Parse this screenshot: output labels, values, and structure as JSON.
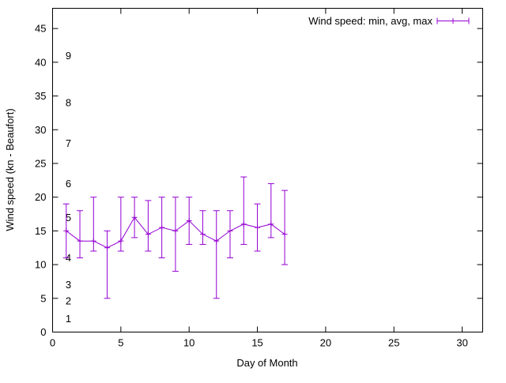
{
  "chart_data": {
    "type": "line",
    "subtype": "yerrorbars",
    "title": "",
    "xlabel": "Day of Month",
    "ylabel": "Wind speed (kn - Beaufort)",
    "legend_label": "Wind speed: min, avg, max",
    "legend_position": "top-right-inside",
    "line_color": "#9400d3",
    "axis_color": "#000000",
    "grid": false,
    "xlim": [
      0,
      31.5
    ],
    "ylim": [
      0,
      48
    ],
    "xticks": [
      0,
      5,
      10,
      15,
      20,
      25,
      30
    ],
    "yticks": [
      0,
      5,
      10,
      15,
      20,
      25,
      30,
      35,
      40,
      45
    ],
    "beaufort_marks": [
      {
        "label": "1",
        "kn": 2
      },
      {
        "label": "2",
        "kn": 4.6
      },
      {
        "label": "3",
        "kn": 7
      },
      {
        "label": "4",
        "kn": 11
      },
      {
        "label": "5",
        "kn": 17
      },
      {
        "label": "6",
        "kn": 22
      },
      {
        "label": "7",
        "kn": 28
      },
      {
        "label": "8",
        "kn": 34
      },
      {
        "label": "9",
        "kn": 41
      }
    ],
    "x": [
      1,
      2,
      3,
      4,
      5,
      6,
      7,
      8,
      9,
      10,
      11,
      12,
      13,
      14,
      15,
      16,
      17
    ],
    "series": [
      {
        "name": "avg",
        "values": [
          15,
          13.5,
          13.5,
          12.5,
          13.5,
          17,
          14.5,
          15.5,
          15,
          16.5,
          14.5,
          13.5,
          15,
          16,
          15.5,
          16,
          14.5
        ]
      },
      {
        "name": "min",
        "values": [
          11,
          11,
          12,
          5,
          12,
          14,
          12,
          11,
          9,
          13,
          13,
          5,
          11,
          13,
          12,
          14,
          10
        ]
      },
      {
        "name": "max",
        "values": [
          19,
          18,
          20,
          15,
          20,
          20,
          19.5,
          20,
          20,
          20,
          18,
          18,
          18,
          23,
          19,
          22,
          21
        ]
      }
    ]
  }
}
